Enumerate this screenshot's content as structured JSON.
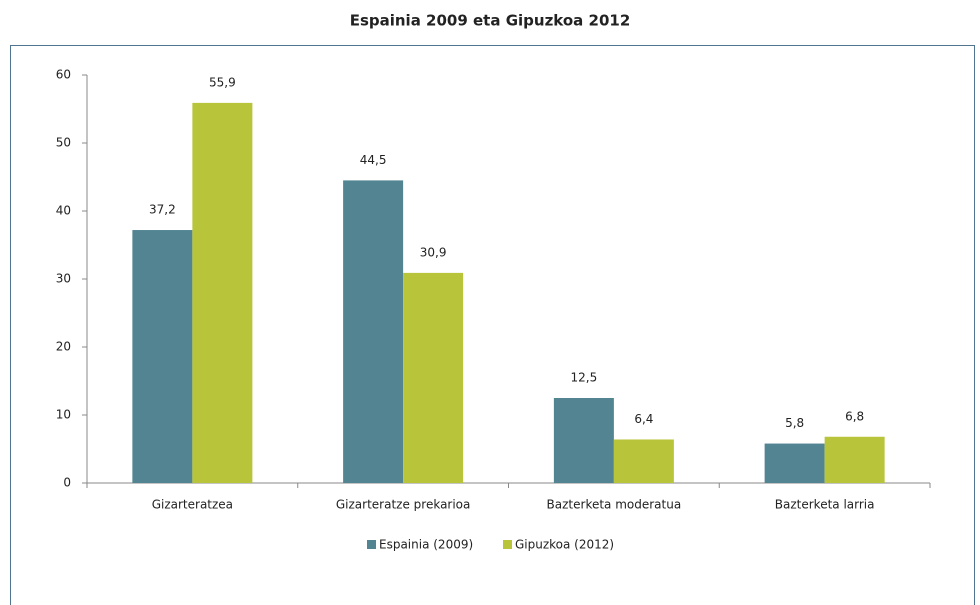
{
  "chart_data": {
    "type": "bar",
    "title": "Espainia 2009 eta Gipuzkoa 2012",
    "categories": [
      "Gizarteratzea",
      "Gizarteratze prekarioa",
      "Bazterketa moderatua",
      "Bazterketa larria"
    ],
    "series": [
      {
        "name": "Espainia (2009)",
        "color": "#528491",
        "values": [
          37.2,
          44.5,
          12.5,
          5.8
        ],
        "value_labels": [
          "37,2",
          "44,5",
          "12,5",
          "5,8"
        ]
      },
      {
        "name": "Gipuzkoa (2012)",
        "color": "#b8c43a",
        "values": [
          55.9,
          30.9,
          6.4,
          6.8
        ],
        "value_labels": [
          "55,9",
          "30,9",
          "6,4",
          "6,8"
        ]
      }
    ],
    "ylim": [
      0,
      60
    ],
    "yticks": [
      0,
      10,
      20,
      30,
      40,
      50,
      60
    ],
    "legend": "bottom"
  }
}
